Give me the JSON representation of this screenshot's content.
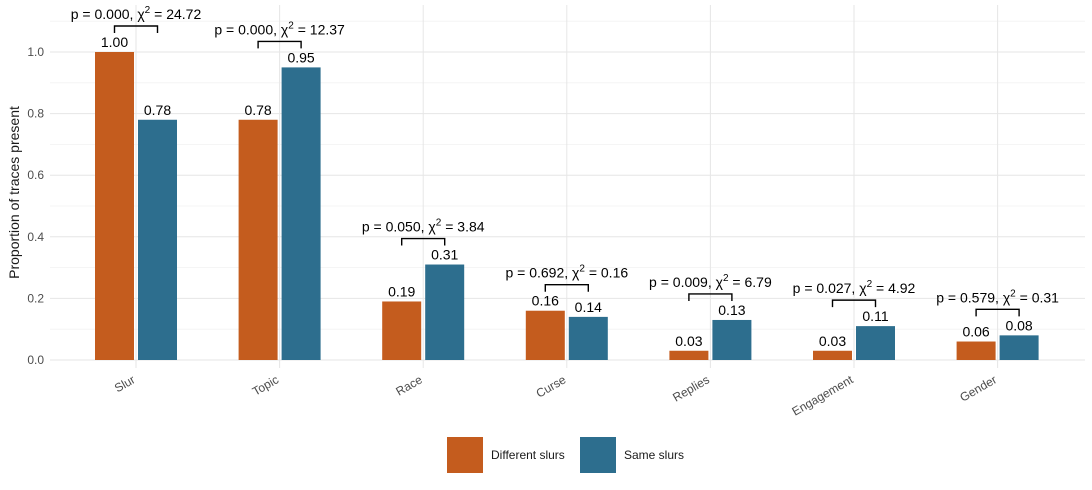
{
  "chart_data": {
    "type": "bar",
    "ylabel": "Proportion of traces present",
    "xlabel": "",
    "ylim": [
      0,
      1.05
    ],
    "yticks": [
      0.0,
      0.2,
      0.4,
      0.6,
      0.8,
      1.0
    ],
    "ytick_labels": [
      "0.0",
      "0.2",
      "0.4",
      "0.6",
      "0.8",
      "1.0"
    ],
    "categories": [
      "Slur",
      "Topic",
      "Race",
      "Curse",
      "Replies",
      "Engagement",
      "Gender"
    ],
    "series": [
      {
        "name": "Different slurs",
        "color": "#C45C1E",
        "values": [
          1.0,
          0.78,
          0.19,
          0.16,
          0.03,
          0.03,
          0.06
        ],
        "labels": [
          "1.00",
          "0.78",
          "0.19",
          "0.16",
          "0.03",
          "0.03",
          "0.06"
        ]
      },
      {
        "name": "Same slurs",
        "color": "#2D6E8E",
        "values": [
          0.78,
          0.95,
          0.31,
          0.14,
          0.13,
          0.11,
          0.08
        ],
        "labels": [
          "0.78",
          "0.95",
          "0.31",
          "0.14",
          "0.13",
          "0.11",
          "0.08"
        ]
      }
    ],
    "annotations": [
      {
        "p": "p = 0.000, ",
        "chi": "χ",
        "sup": "2",
        "stat": " = 24.72"
      },
      {
        "p": "p = 0.000, ",
        "chi": "χ",
        "sup": "2",
        "stat": " = 12.37"
      },
      {
        "p": "p = 0.050, ",
        "chi": "χ",
        "sup": "2",
        "stat": " = 3.84"
      },
      {
        "p": "p = 0.692, ",
        "chi": "χ",
        "sup": "2",
        "stat": " = 0.16"
      },
      {
        "p": "p = 0.009, ",
        "chi": "χ",
        "sup": "2",
        "stat": " = 6.79"
      },
      {
        "p": "p = 0.027, ",
        "chi": "χ",
        "sup": "2",
        "stat": " = 4.92"
      },
      {
        "p": "p = 0.579, ",
        "chi": "χ",
        "sup": "2",
        "stat": " = 0.31"
      }
    ],
    "grid": true,
    "legend_position": "bottom"
  }
}
